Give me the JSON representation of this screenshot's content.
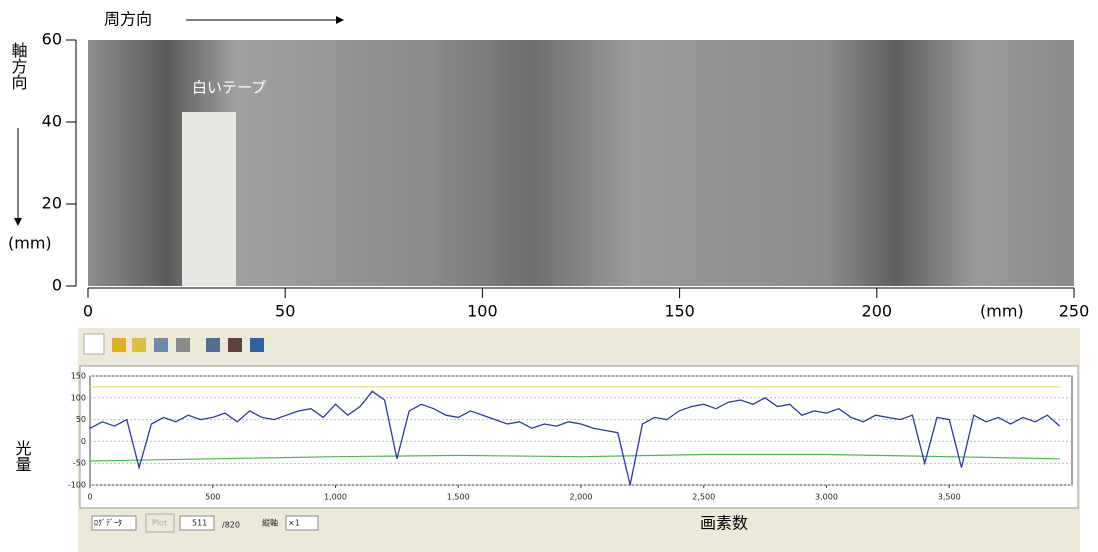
{
  "chart_data": [
    {
      "type": "image",
      "x_axis_direction_label": "周方向",
      "y_axis_label": "軸方向",
      "y_unit_label": "(mm)",
      "x_unit_label": "(mm)",
      "annotation": "白いテープ",
      "xlim": [
        0,
        250
      ],
      "xticks": [
        0,
        50,
        100,
        150,
        200,
        250
      ],
      "ylim": [
        0,
        60
      ],
      "yticks": [
        0,
        20,
        40,
        60
      ]
    },
    {
      "type": "line",
      "y_axis_label": "光量",
      "x_axis_label": "画素数",
      "xlim": [
        0,
        4000
      ],
      "xticks": [
        0,
        500,
        {
          "value": 1000,
          "label": "1,000"
        },
        {
          "value": 1500,
          "label": "1,500"
        },
        {
          "value": 2000,
          "label": "2,000"
        },
        {
          "value": 2500,
          "label": "2,500"
        },
        {
          "value": 3000,
          "label": "3,000"
        },
        {
          "value": 3500,
          "label": "3,500"
        }
      ],
      "ylim": [
        -100,
        150
      ],
      "yticks": [
        -100,
        -50,
        0,
        50,
        100,
        150
      ],
      "grid": true,
      "series": [
        {
          "color": "#2a3a9c",
          "x": [
            0,
            50,
            100,
            150,
            200,
            250,
            300,
            350,
            400,
            450,
            500,
            550,
            600,
            650,
            700,
            750,
            800,
            850,
            900,
            950,
            1000,
            1050,
            1100,
            1150,
            1200,
            1250,
            1300,
            1350,
            1400,
            1450,
            1500,
            1550,
            1600,
            1650,
            1700,
            1750,
            1800,
            1850,
            1900,
            1950,
            2000,
            2050,
            2100,
            2150,
            2200,
            2250,
            2300,
            2350,
            2400,
            2450,
            2500,
            2550,
            2600,
            2650,
            2700,
            2750,
            2800,
            2850,
            2900,
            2950,
            3000,
            3050,
            3100,
            3150,
            3200,
            3250,
            3300,
            3350,
            3400,
            3450,
            3500,
            3550,
            3600,
            3650,
            3700,
            3750,
            3800,
            3850,
            3900,
            3950
          ],
          "values": [
            30,
            45,
            35,
            50,
            -60,
            40,
            55,
            45,
            60,
            50,
            55,
            65,
            45,
            70,
            55,
            50,
            60,
            70,
            75,
            55,
            85,
            60,
            80,
            115,
            95,
            -40,
            70,
            85,
            75,
            60,
            55,
            70,
            60,
            50,
            40,
            45,
            30,
            40,
            35,
            45,
            40,
            30,
            25,
            20,
            -100,
            40,
            55,
            50,
            70,
            80,
            85,
            75,
            90,
            95,
            85,
            100,
            80,
            85,
            60,
            70,
            65,
            75,
            55,
            45,
            60,
            55,
            50,
            60,
            -50,
            55,
            50,
            -60,
            60,
            45,
            55,
            40,
            55,
            45,
            60,
            35
          ]
        },
        {
          "color": "#4cb84c",
          "x": [
            0,
            500,
            1000,
            1500,
            2000,
            2500,
            3000,
            3500,
            3950
          ],
          "values": [
            -45,
            -40,
            -35,
            -32,
            -35,
            -30,
            -30,
            -35,
            -40
          ]
        },
        {
          "color": "#e8e070",
          "x": [
            0,
            3950
          ],
          "values": [
            125,
            125
          ]
        }
      ]
    }
  ],
  "controls": {
    "data_select": "ﾛｸﾞﾃﾞｰﾀ",
    "button": "Plot",
    "position": "511",
    "total": "/820",
    "scale_label": "縦軸",
    "scale": "×1"
  }
}
